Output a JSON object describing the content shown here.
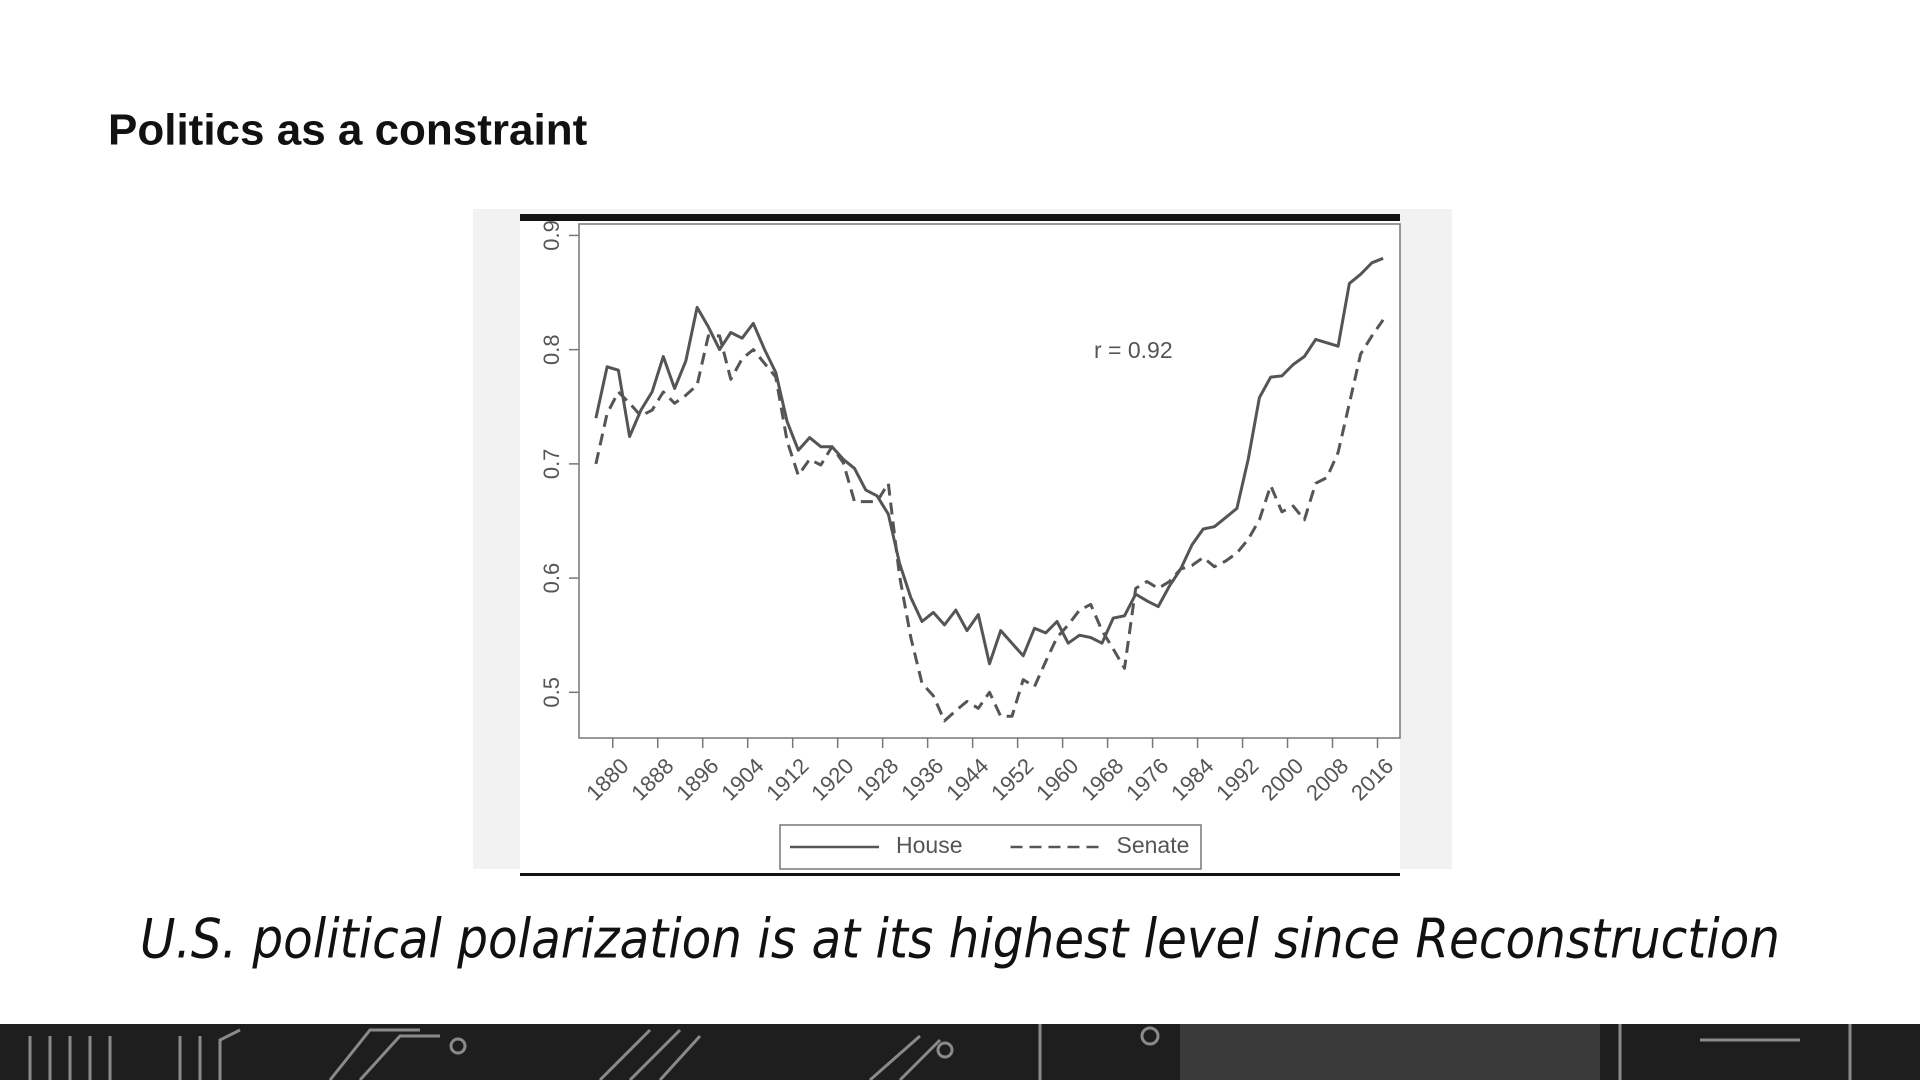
{
  "title": "Politics as a constraint",
  "caption": "U.S. political polarization is at its highest level since Reconstruction",
  "chart_data": {
    "type": "line",
    "annotation": "r = 0.92",
    "x": [
      1877,
      1879,
      1881,
      1883,
      1885,
      1887,
      1889,
      1891,
      1893,
      1895,
      1897,
      1899,
      1901,
      1903,
      1905,
      1907,
      1909,
      1911,
      1913,
      1915,
      1917,
      1919,
      1921,
      1923,
      1925,
      1927,
      1929,
      1931,
      1933,
      1935,
      1937,
      1939,
      1941,
      1943,
      1945,
      1947,
      1949,
      1951,
      1953,
      1955,
      1957,
      1959,
      1961,
      1963,
      1965,
      1967,
      1969,
      1971,
      1973,
      1975,
      1977,
      1979,
      1981,
      1983,
      1985,
      1987,
      1989,
      1991,
      1993,
      1995,
      1997,
      1999,
      2001,
      2003,
      2005,
      2007,
      2009,
      2011,
      2013,
      2015,
      2017
    ],
    "series": [
      {
        "name": "House",
        "color": "#555555",
        "style": "solid",
        "values": [
          0.74,
          0.785,
          0.782,
          0.724,
          0.747,
          0.763,
          0.794,
          0.766,
          0.79,
          0.837,
          0.82,
          0.8,
          0.815,
          0.81,
          0.823,
          0.8,
          0.78,
          0.737,
          0.712,
          0.723,
          0.715,
          0.715,
          0.704,
          0.696,
          0.677,
          0.672,
          0.656,
          0.613,
          0.583,
          0.562,
          0.57,
          0.559,
          0.572,
          0.554,
          0.568,
          0.525,
          0.554,
          0.543,
          0.532,
          0.556,
          0.552,
          0.562,
          0.543,
          0.55,
          0.548,
          0.543,
          0.565,
          0.567,
          0.586,
          0.58,
          0.575,
          0.593,
          0.608,
          0.629,
          0.643,
          0.645,
          0.653,
          0.661,
          0.704,
          0.758,
          0.776,
          0.777,
          0.787,
          0.794,
          0.809,
          0.806,
          0.803,
          0.858,
          0.866,
          0.876,
          0.88
        ]
      },
      {
        "name": "Senate",
        "color": "#555555",
        "style": "dashed",
        "values": [
          0.7,
          0.744,
          0.763,
          0.753,
          0.742,
          0.747,
          0.763,
          0.753,
          0.76,
          0.769,
          0.812,
          0.812,
          0.774,
          0.792,
          0.8,
          0.788,
          0.776,
          0.72,
          0.69,
          0.704,
          0.699,
          0.715,
          0.701,
          0.667,
          0.667,
          0.667,
          0.683,
          0.602,
          0.548,
          0.508,
          0.497,
          0.475,
          0.484,
          0.492,
          0.486,
          0.5,
          0.479,
          0.479,
          0.511,
          0.505,
          0.527,
          0.548,
          0.559,
          0.572,
          0.577,
          0.554,
          0.538,
          0.521,
          0.591,
          0.597,
          0.591,
          0.597,
          0.608,
          0.611,
          0.618,
          0.61,
          0.615,
          0.622,
          0.634,
          0.651,
          0.681,
          0.658,
          0.663,
          0.651,
          0.683,
          0.688,
          0.71,
          0.753,
          0.796,
          0.812,
          0.826
        ]
      }
    ],
    "xlim": [
      1874,
      2020
    ],
    "xticks": [
      1880,
      1888,
      1896,
      1904,
      1912,
      1920,
      1928,
      1936,
      1944,
      1952,
      1960,
      1968,
      1976,
      1984,
      1992,
      2000,
      2008,
      2016
    ],
    "ylim": [
      0.46,
      0.91
    ],
    "yticks": [
      0.5,
      0.6,
      0.7,
      0.8,
      0.9
    ],
    "grid": false,
    "legend": "bottom"
  }
}
